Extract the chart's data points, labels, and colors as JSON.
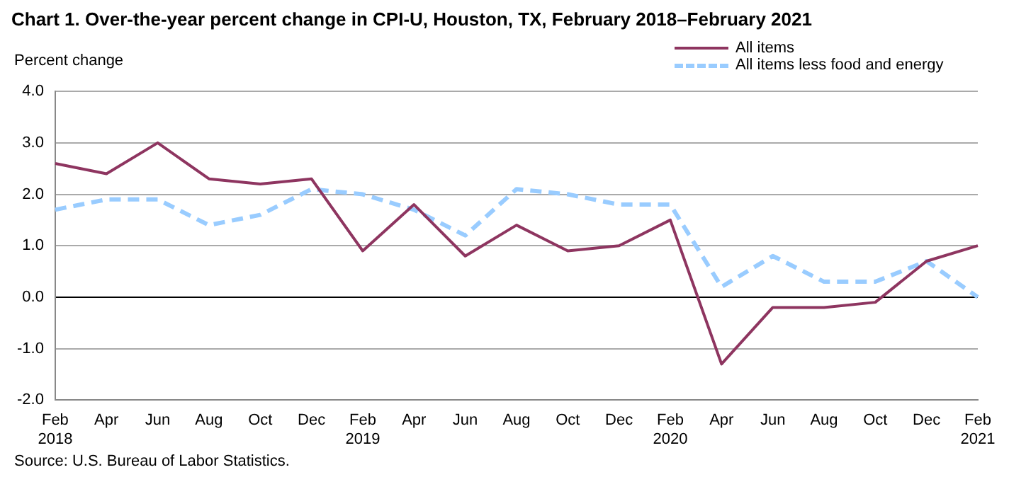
{
  "chart_data": {
    "type": "line",
    "title": "Chart 1. Over-the-year percent change in CPI-U, Houston,  TX, February 2018–February 2021",
    "ylabel": "Percent change",
    "categories": [
      "Feb 2018",
      "Apr",
      "Jun",
      "Aug",
      "Oct",
      "Dec",
      "Feb 2019",
      "Apr",
      "Jun",
      "Aug",
      "Oct",
      "Dec",
      "Feb 2020",
      "Apr",
      "Jun",
      "Aug",
      "Oct",
      "Dec",
      "Feb 2021"
    ],
    "series": [
      {
        "name": "All items",
        "color": "#8e3560",
        "line_style": "solid",
        "values": [
          2.6,
          2.4,
          3.0,
          2.3,
          2.2,
          2.3,
          0.9,
          1.8,
          0.8,
          1.4,
          0.9,
          1.0,
          1.5,
          -1.3,
          -0.2,
          -0.2,
          -0.1,
          0.7,
          1.0
        ]
      },
      {
        "name": "All items less food and energy",
        "color": "#99ccff",
        "line_style": "dashed",
        "values": [
          1.7,
          1.9,
          1.9,
          1.4,
          1.6,
          2.1,
          2.0,
          1.7,
          1.2,
          2.1,
          2.0,
          1.8,
          1.8,
          0.2,
          0.8,
          0.3,
          0.3,
          0.7,
          0.0
        ]
      }
    ],
    "ylim": [
      -2.0,
      4.0
    ],
    "yticks": [
      {
        "value": -2,
        "label": "-2.0"
      },
      {
        "value": -1,
        "label": "-1.0"
      },
      {
        "value": 0,
        "label": "0.0"
      },
      {
        "value": 1,
        "label": "1.0"
      },
      {
        "value": 2,
        "label": "2.0"
      },
      {
        "value": 3,
        "label": "3.0"
      },
      {
        "value": 4,
        "label": "4.0"
      }
    ],
    "grid": "y",
    "legend": "top right",
    "marker": "none",
    "annotations": [
      "Source: U.S. Bureau of Labor Statistics."
    ]
  }
}
